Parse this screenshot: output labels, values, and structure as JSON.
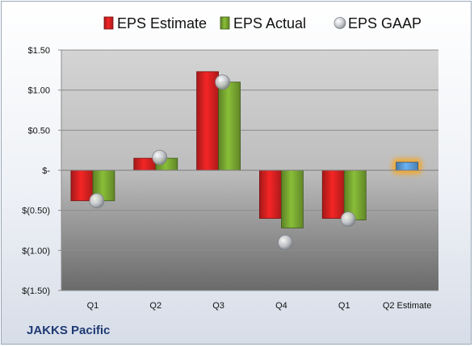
{
  "company_label": "JAKKS Pacific",
  "chart_data": {
    "type": "bar",
    "categories": [
      "Q1",
      "Q2",
      "Q3",
      "Q4",
      "Q1",
      "Q2 Estimate"
    ],
    "series": [
      {
        "name": "EPS Estimate",
        "type": "bar",
        "color": "#d42020",
        "values": [
          -0.38,
          0.15,
          1.23,
          -0.6,
          -0.6,
          null
        ]
      },
      {
        "name": "EPS Actual",
        "type": "bar",
        "color": "#77a531",
        "values": [
          -0.38,
          0.15,
          1.1,
          -0.72,
          -0.62,
          null
        ]
      },
      {
        "name": "EPS GAAP",
        "type": "scatter",
        "color": "#b8bcc2",
        "values": [
          -0.38,
          0.16,
          1.1,
          -0.9,
          -0.61,
          null
        ]
      },
      {
        "name": "",
        "type": "bar",
        "color": "#5b9bd5",
        "highlight": "#f5a623",
        "values": [
          null,
          null,
          null,
          null,
          null,
          0.1
        ]
      }
    ],
    "y_ticks": [
      1.5,
      1.0,
      0.5,
      0,
      -0.5,
      -1.0,
      -1.5
    ],
    "y_tick_labels": [
      "$1.50",
      "$1.00",
      "$0.50",
      "$-",
      "$(0.50)",
      "$(1.00)",
      "$(1.50)"
    ],
    "ylim": [
      -1.5,
      1.5
    ],
    "grid": true,
    "legend_position": "top",
    "title": "",
    "xlabel": "",
    "ylabel": ""
  }
}
